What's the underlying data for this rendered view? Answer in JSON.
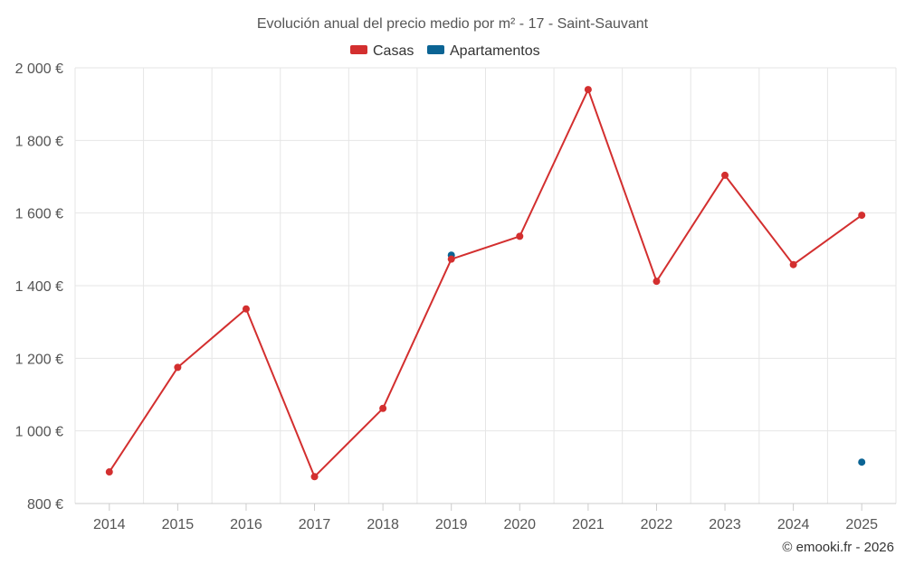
{
  "chart_data": {
    "type": "line",
    "title": "Evolución anual del precio medio por m² - 17 - Saint-Sauvant",
    "categories": [
      "2014",
      "2015",
      "2016",
      "2017",
      "2018",
      "2019",
      "2020",
      "2021",
      "2022",
      "2023",
      "2024",
      "2025"
    ],
    "y_ticks": [
      "800 €",
      "1 000 €",
      "1 200 €",
      "1 400 €",
      "1 600 €",
      "1 800 €",
      "2 000 €"
    ],
    "ylim": [
      800,
      2000
    ],
    "grid": true,
    "legend_position": "top-center",
    "series": [
      {
        "name": "Casas",
        "color": "#d32f2f",
        "line": true,
        "values": [
          887,
          1175,
          1336,
          874,
          1062,
          1473,
          1536,
          1940,
          1412,
          1704,
          1458,
          1594
        ]
      },
      {
        "name": "Apartamentos",
        "color": "#0b6494",
        "line": false,
        "values": [
          null,
          null,
          null,
          null,
          null,
          1484,
          null,
          null,
          null,
          null,
          null,
          914
        ]
      }
    ],
    "credit": "© emooki.fr - 2026"
  }
}
